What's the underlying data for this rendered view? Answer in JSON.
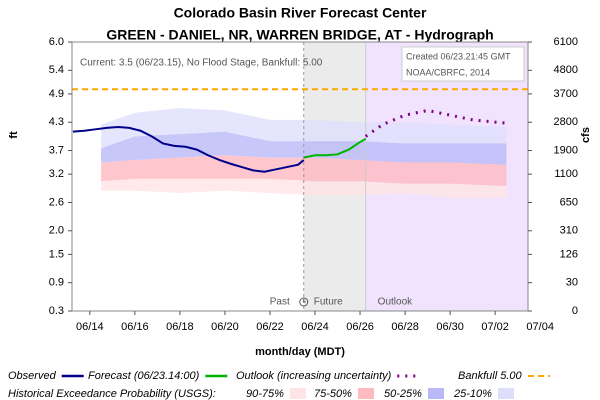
{
  "chart_data": {
    "type": "line",
    "title": "Colorado Basin River Forecast Center",
    "subtitle": "GREEN - DANIEL, NR, WARREN BRIDGE, AT - Hydrograph",
    "ylabel": "ft",
    "y2label": "cfs",
    "xlabel": "month/day (MDT)",
    "annotation": "Current: 3.5 (06/23.15), No Flood Stage, Bankfull: 5.00",
    "credit": [
      "Created 06/23.21:45 GMT",
      "NOAA/CBRFC, 2014"
    ],
    "xlim": [
      "06/13 05:00",
      "07/03 11:00"
    ],
    "xticks": [
      "06/14",
      "06/16",
      "06/18",
      "06/20",
      "06/22",
      "06/24",
      "06/26",
      "06/28",
      "06/30",
      "07/02",
      "07/04"
    ],
    "ylim": [
      0.3,
      6.0
    ],
    "yticks": [
      {
        "value": 6.0,
        "label": "6.0"
      },
      5.4,
      4.9,
      4.3,
      3.7,
      3.2,
      2.6,
      {
        "value": 2.0,
        "label": "2.0"
      },
      1.5,
      0.9,
      0.3
    ],
    "y2ticks": [
      6100,
      4800,
      3700,
      2800,
      1900,
      1100,
      650,
      310,
      126,
      30,
      0
    ],
    "regions": {
      "now": "06/23 12:00",
      "outlook_start": "06/26 06:00",
      "past_label": "Past",
      "future_label": "Future",
      "outlook_label": "Outlook",
      "future_color": "#ebebeb",
      "outlook_color": "#f1e3fd"
    },
    "series": [
      {
        "name": "Observed",
        "color": "#00008b",
        "dash": "none",
        "x": [
          "06/13 06:00",
          "06/13 18:00",
          "06/14 06:00",
          "06/14 18:00",
          "06/15 06:00",
          "06/15 18:00",
          "06/16 06:00",
          "06/16 18:00",
          "06/17 06:00",
          "06/17 18:00",
          "06/18 06:00",
          "06/18 18:00",
          "06/19 06:00",
          "06/19 18:00",
          "06/20 06:00",
          "06/20 18:00",
          "06/21 06:00",
          "06/21 18:00",
          "06/22 06:00",
          "06/22 18:00",
          "06/23 06:00",
          "06/23 12:00"
        ],
        "values": [
          4.1,
          4.12,
          4.15,
          4.18,
          4.2,
          4.18,
          4.12,
          4.0,
          3.85,
          3.8,
          3.78,
          3.72,
          3.6,
          3.5,
          3.42,
          3.35,
          3.28,
          3.25,
          3.3,
          3.35,
          3.4,
          3.5
        ]
      },
      {
        "name": "Forecast (06/23.14:00)",
        "color": "#00b400",
        "dash": "none",
        "x": [
          "06/23 12:00",
          "06/24 00:00",
          "06/24 12:00",
          "06/25 00:00",
          "06/25 12:00",
          "06/26 00:00",
          "06/26 06:00"
        ],
        "values": [
          3.55,
          3.6,
          3.6,
          3.62,
          3.72,
          3.88,
          3.95
        ]
      },
      {
        "name": "Outlook (increasing uncertainty)",
        "color": "#800080",
        "dash": "2,6",
        "x": [
          "06/26 06:00",
          "06/27 00:00",
          "06/28 00:00",
          "06/29 00:00",
          "06/30 00:00",
          "07/01 00:00",
          "07/02 12:00"
        ],
        "values": [
          4.0,
          4.25,
          4.45,
          4.55,
          4.45,
          4.35,
          4.28
        ]
      }
    ],
    "bankfull": {
      "name": "Bankfull 5.00",
      "value": 5.0,
      "color": "#ffa500"
    },
    "exceedance_title": "Historical Exceedance Probability (USGS):",
    "exceedance_x": [
      "06/14 12:00",
      "06/16 00:00",
      "06/18 00:00",
      "06/20 00:00",
      "06/22 00:00",
      "06/24 00:00",
      "06/26 00:00",
      "06/28 00:00",
      "06/30 00:00",
      "07/02 12:00"
    ],
    "bands": [
      {
        "name": "90-75%",
        "color": "#ffe4e6",
        "lower": [
          2.85,
          2.85,
          2.8,
          2.85,
          2.8,
          2.75,
          2.75,
          2.8,
          2.7,
          2.7
        ],
        "upper": [
          3.05,
          3.1,
          3.1,
          3.1,
          3.1,
          3.05,
          3.05,
          3.0,
          3.0,
          2.95
        ]
      },
      {
        "name": "75-50%",
        "color": "#ffb9c0",
        "lower": [
          3.05,
          3.1,
          3.1,
          3.1,
          3.1,
          3.05,
          3.05,
          3.0,
          3.0,
          2.95
        ],
        "upper": [
          3.45,
          3.5,
          3.55,
          3.6,
          3.55,
          3.55,
          3.5,
          3.45,
          3.45,
          3.4
        ]
      },
      {
        "name": "50-25%",
        "color": "#b9b9f7",
        "lower": [
          3.45,
          3.5,
          3.55,
          3.6,
          3.55,
          3.55,
          3.5,
          3.45,
          3.45,
          3.4
        ],
        "upper": [
          3.75,
          4.0,
          4.05,
          4.1,
          3.9,
          3.9,
          3.9,
          3.85,
          3.85,
          3.85
        ]
      },
      {
        "name": "25-10%",
        "color": "#dedefc",
        "lower": [
          3.75,
          4.0,
          4.05,
          4.1,
          3.9,
          3.9,
          3.9,
          3.85,
          3.85,
          3.85
        ],
        "upper": [
          4.25,
          4.5,
          4.6,
          4.55,
          4.35,
          4.35,
          4.3,
          4.3,
          4.25,
          4.2
        ]
      }
    ]
  }
}
